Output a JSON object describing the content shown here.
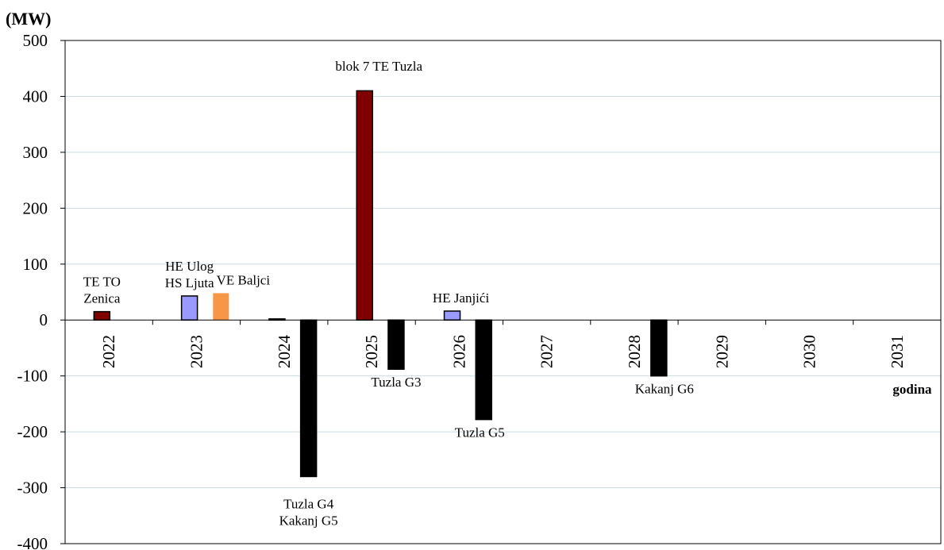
{
  "chart_data": {
    "type": "bar",
    "ylabel": "(MW)",
    "xlabel": "godina",
    "ylim": [
      -400,
      500
    ],
    "yticks": [
      -400,
      -300,
      -200,
      -100,
      0,
      100,
      200,
      300,
      400,
      500
    ],
    "categories": [
      "2022",
      "2023",
      "2024",
      "2025",
      "2026",
      "2027",
      "2028",
      "2029",
      "2030",
      "2031"
    ],
    "grid": true,
    "colors": {
      "thermal": "#800000",
      "hydro": "#9999ff",
      "wind": "#f79646",
      "decommission": "#000000"
    },
    "bars": [
      {
        "category": "2022",
        "slot": 0,
        "value": 15,
        "kind": "thermal"
      },
      {
        "category": "2023",
        "slot": 0,
        "value": 43,
        "kind": "hydro"
      },
      {
        "category": "2023",
        "slot": 1,
        "value": 48,
        "kind": "wind"
      },
      {
        "category": "2024",
        "slot": 0,
        "value": 2,
        "kind": "thermal"
      },
      {
        "category": "2024",
        "slot": 1,
        "value": -280,
        "kind": "decommission"
      },
      {
        "category": "2025",
        "slot": 0,
        "value": 410,
        "kind": "thermal"
      },
      {
        "category": "2025",
        "slot": 1,
        "value": -88,
        "kind": "decommission"
      },
      {
        "category": "2026",
        "slot": 0,
        "value": 16,
        "kind": "hydro"
      },
      {
        "category": "2026",
        "slot": 1,
        "value": -178,
        "kind": "decommission"
      },
      {
        "category": "2028",
        "slot": 1,
        "value": -100,
        "kind": "decommission"
      }
    ],
    "annotations": [
      {
        "category": "2022",
        "slot": 0,
        "lines": [
          "TE TO",
          "Zenica"
        ]
      },
      {
        "category": "2023",
        "slot": 0,
        "lines": [
          "HE Ulog",
          "HS Ljuta"
        ]
      },
      {
        "category": "2023",
        "slot": 1,
        "lines": [
          "VE Baljci"
        ]
      },
      {
        "category": "2024",
        "slot": 1,
        "lines": [
          "Tuzla  G4",
          "Kakanj G5"
        ]
      },
      {
        "category": "2025",
        "slot": 0,
        "lines": [
          "blok 7 TE Tuzla"
        ]
      },
      {
        "category": "2025",
        "slot": 1,
        "lines": [
          "Tuzla G3"
        ]
      },
      {
        "category": "2026",
        "slot": 0,
        "lines": [
          "HE Janjići"
        ]
      },
      {
        "category": "2026",
        "slot": 1,
        "lines": [
          "Tuzla G5"
        ]
      },
      {
        "category": "2028",
        "slot": 1,
        "lines": [
          "Kakanj G6"
        ]
      }
    ]
  }
}
